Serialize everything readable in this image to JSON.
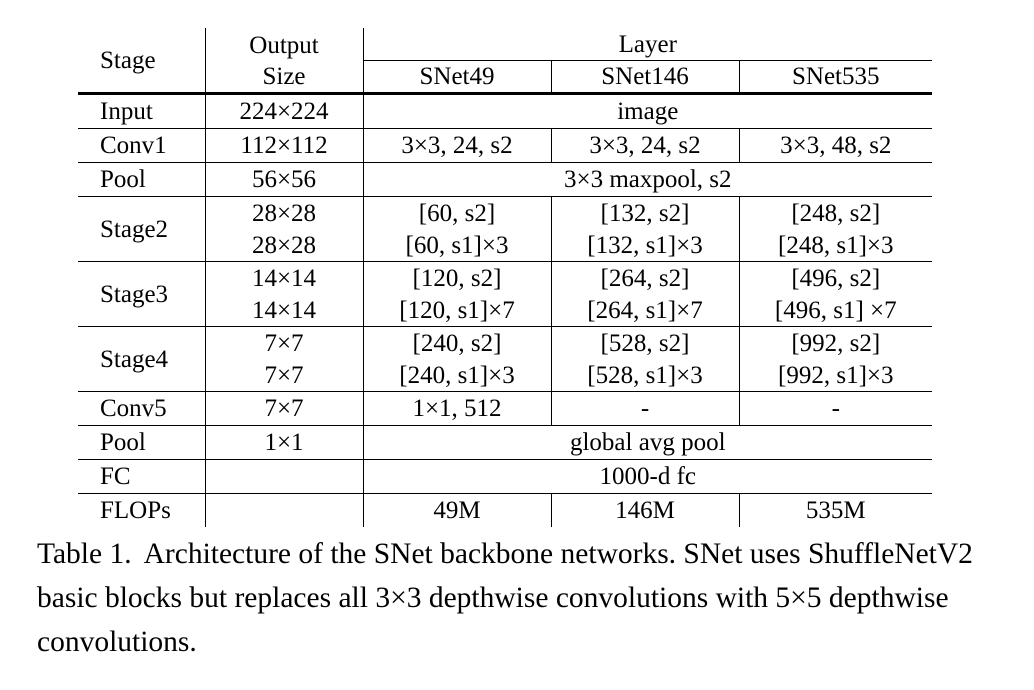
{
  "table": {
    "headers": {
      "stage": "Stage",
      "output_size_line1": "Output",
      "output_size_line2": "Size",
      "layer": "Layer",
      "models": [
        "SNet49",
        "SNet146",
        "SNet535"
      ]
    },
    "rows": {
      "input": {
        "stage": "Input",
        "size": "224×224",
        "layer": "image"
      },
      "conv1": {
        "stage": "Conv1",
        "size": "112×112",
        "cells": [
          "3×3, 24, s2",
          "3×3, 24, s2",
          "3×3, 48, s2"
        ]
      },
      "pool1": {
        "stage": "Pool",
        "size": "56×56",
        "layer": "3×3 maxpool, s2"
      },
      "stage2": {
        "stage": "Stage2",
        "size_a": "28×28",
        "size_b": "28×28",
        "cells_a": [
          "[60, s2]",
          "[132, s2]",
          "[248, s2]"
        ],
        "cells_b": [
          "[60, s1]×3",
          "[132, s1]×3",
          "[248, s1]×3"
        ]
      },
      "stage3": {
        "stage": "Stage3",
        "size_a": "14×14",
        "size_b": "14×14",
        "cells_a": [
          "[120, s2]",
          "[264, s2]",
          "[496, s2]"
        ],
        "cells_b": [
          "[120, s1]×7",
          "[264, s1]×7",
          "[496, s1] ×7"
        ]
      },
      "stage4": {
        "stage": "Stage4",
        "size_a": "7×7",
        "size_b": "7×7",
        "cells_a": [
          "[240, s2]",
          "[528, s2]",
          "[992, s2]"
        ],
        "cells_b": [
          "[240, s1]×3",
          "[528, s1]×3",
          "[992, s1]×3"
        ]
      },
      "conv5": {
        "stage": "Conv5",
        "size": "7×7",
        "cells": [
          "1×1, 512",
          "-",
          "-"
        ]
      },
      "pool2": {
        "stage": "Pool",
        "size": "1×1",
        "layer": "global avg pool"
      },
      "fc": {
        "stage": "FC",
        "size": "",
        "layer": "1000-d fc"
      },
      "flops": {
        "stage": "FLOPs",
        "size": "",
        "cells": [
          "49M",
          "146M",
          "535M"
        ]
      }
    }
  },
  "caption": {
    "label": "Table 1.",
    "text": "Architecture of the SNet backbone networks. SNet uses ShuffleNetV2 basic blocks but replaces all 3×3 depthwise convolutions with 5×5 depthwise convolutions."
  }
}
